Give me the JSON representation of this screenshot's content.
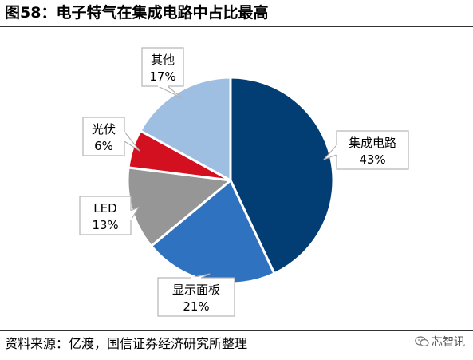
{
  "header": {
    "title": "图58：电子特气在集成电路中占比最高"
  },
  "footer": {
    "source": "资料来源：亿渡，国信证券经济研究所整理",
    "watermark": "芯智讯"
  },
  "colors": {
    "slice_ic": "#023e74",
    "slice_display": "#2f72bf",
    "slice_led": "#969696",
    "slice_pv": "#d2101f",
    "slice_other": "#9ebee2",
    "callout_border": "#b3b3b3"
  },
  "chart_data": {
    "type": "pie",
    "title": "电子特气在集成电路中占比最高",
    "start_angle_deg": 0,
    "direction": "clockwise",
    "slices": [
      {
        "label": "集成电路",
        "value": 43,
        "value_label": "43%",
        "color": "#023e74"
      },
      {
        "label": "显示面板",
        "value": 21,
        "value_label": "21%",
        "color": "#2f72bf"
      },
      {
        "label": "LED",
        "value": 13,
        "value_label": "13%",
        "color": "#969696"
      },
      {
        "label": "光伏",
        "value": 6,
        "value_label": "6%",
        "color": "#d2101f"
      },
      {
        "label": "其他",
        "value": 17,
        "value_label": "17%",
        "color": "#9ebee2"
      }
    ]
  }
}
